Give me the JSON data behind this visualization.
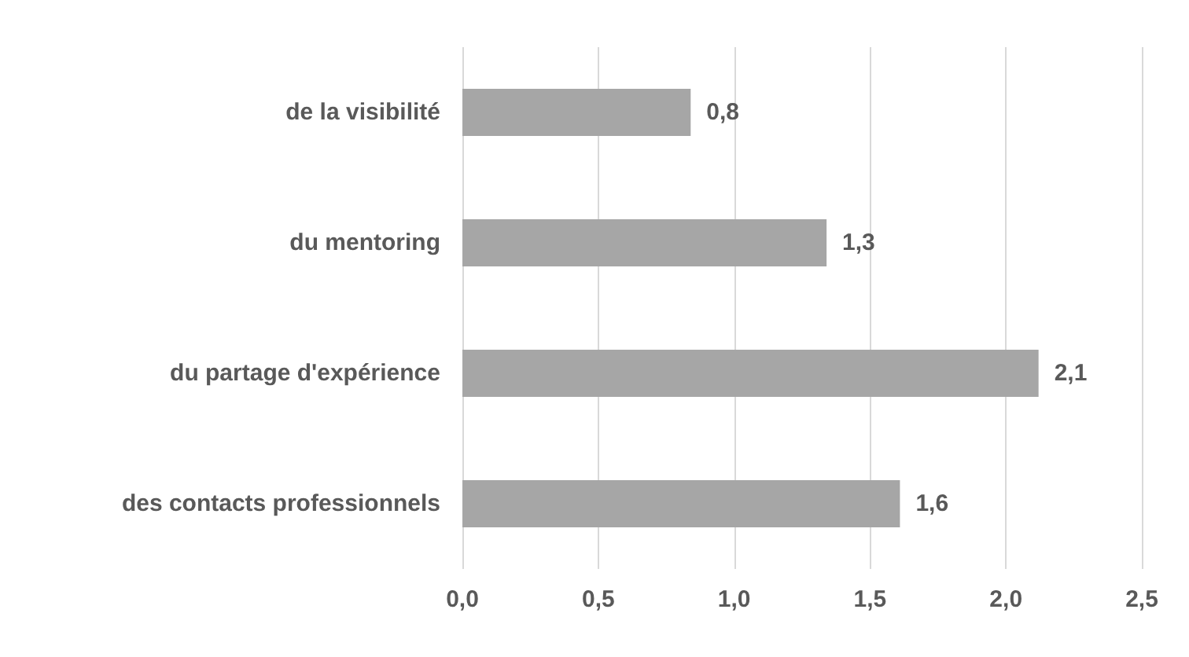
{
  "chart_data": {
    "type": "bar",
    "orientation": "horizontal",
    "categories": [
      "de la visibilité",
      "du mentoring",
      "du partage d'expérience",
      "des contacts professionnels"
    ],
    "values": [
      0.84,
      1.34,
      2.12,
      1.61
    ],
    "value_labels": [
      "0,8",
      "1,3",
      "2,1",
      "1,6"
    ],
    "color": "#a6a6a6",
    "xlim": [
      0,
      2.5
    ],
    "xticks": [
      {
        "value": 0,
        "label": "0,0"
      },
      {
        "value": 0.5,
        "label": "0,5"
      },
      {
        "value": 1,
        "label": "1,0"
      },
      {
        "value": 1.5,
        "label": "1,5"
      },
      {
        "value": 2,
        "label": "2,0"
      },
      {
        "value": 2.5,
        "label": "2,5"
      }
    ],
    "grid": "x"
  }
}
